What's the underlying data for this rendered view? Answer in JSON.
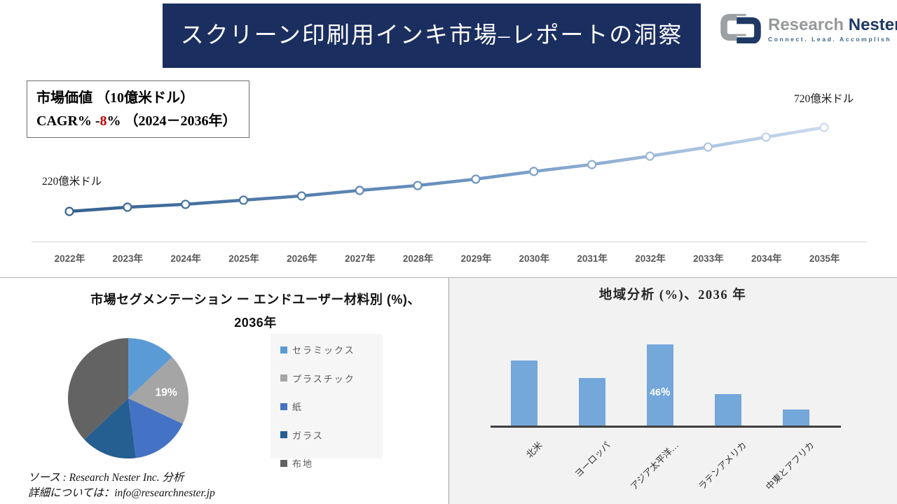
{
  "header": {
    "title": "スクリーン印刷用インキ市場–レポートの洞察",
    "banner_color": "#1b2e60",
    "logo": {
      "brand_first": "Research",
      "brand_second": "Nester",
      "tagline": "Connect. Lead. Accomplish",
      "icon_gray": "#9aa0a4",
      "icon_navy": "#1f3864"
    }
  },
  "market_box": {
    "line1": "市場価値 （10億米ドル）",
    "line2_prefix": "CAGR% -",
    "line2_highlight": "8",
    "line2_suffix": "% （2024－2036年）",
    "highlight_color": "#c00000"
  },
  "footer": {
    "source": "ソース : Research Nester Inc. 分析",
    "contact": "詳細については：info@researchnester.jp"
  },
  "chart_data": [
    {
      "type": "line",
      "x": [
        "2022年",
        "2023年",
        "2024年",
        "2025年",
        "2026年",
        "2027年",
        "2028年",
        "2029年",
        "2030年",
        "2031年",
        "2032年",
        "2033年",
        "2034年",
        "2035年"
      ],
      "values": [
        220,
        245,
        262,
        287,
        312,
        345,
        374,
        412,
        458,
        499,
        549,
        603,
        662,
        720
      ],
      "start_label": "220億米ドル",
      "end_label": "720億米ドル",
      "ylim": [
        200,
        760
      ],
      "grid": false,
      "line_gradient": [
        "#34618f",
        "#6f97c4",
        "#ccdbef"
      ],
      "marker": "white-circle"
    },
    {
      "type": "pie",
      "title": "市場セグメンテーション ー エンドユーザー材料別 (%)、2036年",
      "labels": [
        "セラミックス",
        "プラスチック",
        "紙",
        "ガラス",
        "布地"
      ],
      "values": [
        13,
        19,
        16,
        15,
        37
      ],
      "colors": [
        "#5b9bd5",
        "#a5a5a5",
        "#4472c4",
        "#255e91",
        "#636363"
      ],
      "visible_label": {
        "slice_index": 1,
        "text": "19%"
      },
      "legend_position": "right"
    },
    {
      "type": "bar",
      "title": "地域分析 (%)、2036 年",
      "categories": [
        "北米",
        "ヨーロッパ",
        "アジア太平洋…",
        "ラテンアメリカ",
        "中東とアフリカ"
      ],
      "values": [
        37,
        27,
        46,
        18,
        9
      ],
      "bar_color": "#74a7da",
      "visible_label": {
        "category_index": 2,
        "text": "46％"
      },
      "ylim": [
        0,
        50
      ],
      "grid": false
    }
  ]
}
